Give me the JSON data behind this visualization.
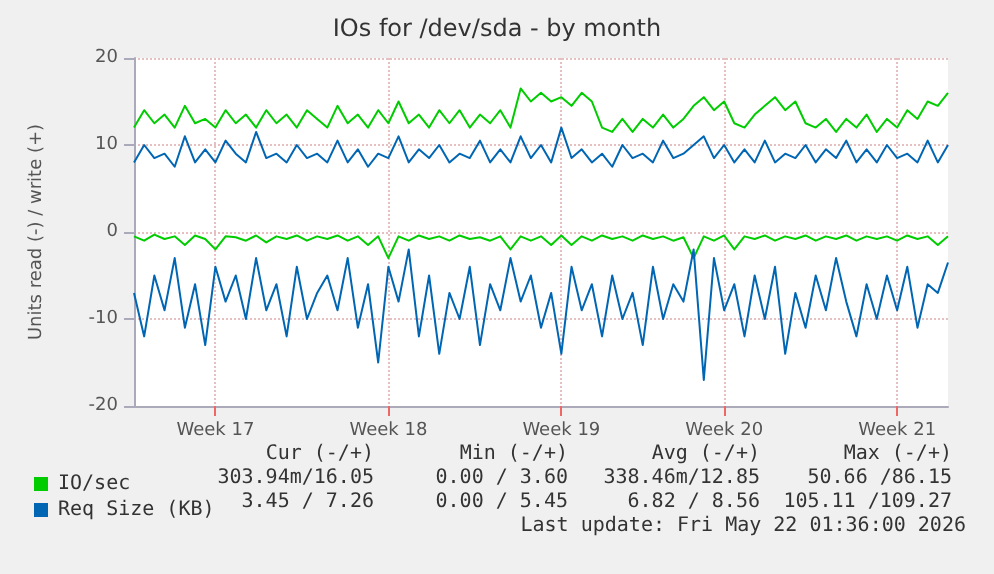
{
  "chart_data": {
    "type": "line",
    "title": "IOs for /dev/sda - by month",
    "ylabel": "Units read (-) / write (+)",
    "categories": [
      null,
      null,
      null,
      null,
      null,
      null,
      null,
      null,
      "Week 17",
      null,
      null,
      null,
      null,
      null,
      null,
      null,
      null,
      null,
      null,
      null,
      null,
      null,
      null,
      null,
      null,
      "Week 18",
      null,
      null,
      null,
      null,
      null,
      null,
      null,
      null,
      null,
      null,
      null,
      null,
      null,
      null,
      null,
      null,
      "Week 19",
      null,
      null,
      null,
      null,
      null,
      null,
      null,
      null,
      null,
      null,
      null,
      null,
      null,
      null,
      null,
      "Week 20",
      null,
      null,
      null,
      null,
      null,
      null,
      null,
      null,
      null,
      null,
      null,
      null,
      null,
      null,
      null,
      null,
      "Week 21",
      null,
      null,
      null,
      null,
      null
    ],
    "series": [
      {
        "color": "#00cc00",
        "values": [
          -0.5,
          -1,
          -0.3,
          -0.8,
          -0.5,
          -1.5,
          -0.4,
          -0.8,
          -2,
          -0.5,
          -0.6,
          -1,
          -0.4,
          -1.2,
          -0.5,
          -0.8,
          -0.4,
          -1,
          -0.5,
          -0.8,
          -0.4,
          -1,
          -0.5,
          -1.5,
          -0.5,
          -3,
          -0.5,
          -1,
          -0.4,
          -0.8,
          -0.5,
          -1,
          -0.4,
          -0.8,
          -0.6,
          -1,
          -0.5,
          -2,
          -0.5,
          -1,
          -0.5,
          -1.5,
          -0.4,
          -1.5,
          -0.5,
          -1,
          -0.4,
          -0.8,
          -0.5,
          -1,
          -0.4,
          -0.8,
          -0.5,
          -1,
          -0.6,
          -3,
          -0.5,
          -1,
          -0.4,
          -2,
          -0.5,
          -0.8,
          -0.4,
          -1,
          -0.5,
          -0.8,
          -0.4,
          -1,
          -0.5,
          -0.8,
          -0.4,
          -1,
          -0.5,
          -0.8,
          -0.5,
          -1,
          -0.4,
          -0.8,
          -0.5,
          -1.5,
          -0.5
        ]
      },
      {
        "color": "#0066b3",
        "values": [
          -7,
          -12,
          -5,
          -9,
          -3,
          -11,
          -6,
          -13,
          -4,
          -8,
          -5,
          -10,
          -3,
          -9,
          -6,
          -12,
          -4,
          -10,
          -7,
          -5,
          -9,
          -3,
          -11,
          -6,
          -15,
          -4,
          -8,
          -2,
          -12,
          -5,
          -14,
          -7,
          -10,
          -4,
          -13,
          -6,
          -9,
          -3,
          -8,
          -5,
          -11,
          -7,
          -14,
          -4,
          -9,
          -6,
          -12,
          -5,
          -10,
          -7,
          -13,
          -4,
          -10,
          -6,
          -8,
          -2,
          -17,
          -3,
          -9,
          -6,
          -12,
          -5,
          -10,
          -4,
          -14,
          -7,
          -11,
          -5,
          -9,
          -3,
          -8,
          -12,
          -6,
          -10,
          -5,
          -9,
          -4,
          -11,
          -6,
          -7,
          -3.5
        ]
      },
      {
        "name": "IO/sec",
        "color": "#00cc00",
        "values": [
          12,
          14,
          12.5,
          13.5,
          12,
          14.5,
          12.5,
          13,
          12,
          14,
          12.5,
          13.5,
          12,
          14,
          12.5,
          13.5,
          12,
          14,
          13,
          12,
          14.5,
          12.5,
          13.5,
          12,
          14,
          12.5,
          15,
          12.5,
          13.5,
          12,
          14,
          12.5,
          14,
          12,
          13.5,
          12.5,
          14,
          12,
          16.5,
          15,
          16,
          15,
          15.5,
          14.5,
          16,
          15,
          12,
          11.5,
          13,
          11.5,
          13,
          12,
          13.5,
          12,
          13,
          14.5,
          15.5,
          14,
          15,
          12.5,
          12,
          13.5,
          14.5,
          15.5,
          14,
          15,
          12.5,
          12,
          13,
          11.5,
          13,
          12,
          13.5,
          11.5,
          13,
          12,
          14,
          13,
          15,
          14.5,
          16
        ]
      },
      {
        "name": "Req Size (KB)",
        "color": "#0066b3",
        "values": [
          8,
          10,
          8.5,
          9,
          7.5,
          11,
          8,
          9.5,
          8,
          10.5,
          9,
          8,
          11.5,
          8.5,
          9,
          8,
          10,
          8.5,
          9,
          8,
          10.5,
          8,
          9.5,
          7.5,
          9,
          8.5,
          11,
          8,
          9.5,
          8.5,
          10,
          8,
          9,
          8.5,
          10.5,
          8,
          9.5,
          8,
          11,
          8.5,
          10,
          8,
          12,
          8.5,
          9.5,
          8,
          9,
          7.5,
          10,
          8.5,
          9,
          8,
          10.5,
          8.5,
          9,
          10,
          11,
          8.5,
          10,
          8,
          9.5,
          8,
          10.5,
          8,
          9,
          8.5,
          10,
          8,
          9.5,
          8.5,
          10.5,
          8,
          9.5,
          8,
          10,
          8.5,
          9,
          8,
          10.5,
          8,
          10
        ]
      }
    ],
    "ylim": [
      -20,
      20
    ],
    "yticks": [
      -20,
      -10,
      0,
      10,
      20
    ],
    "grid": true,
    "legend": "bottom",
    "marker": "none",
    "line_style": "solid",
    "annotations": [
      "Cur (-/+)",
      "Min (-/+)",
      "Avg (-/+)",
      "Max (-/+)",
      "303.94m/16.05",
      "0.00 / 3.60",
      "338.46m/12.85",
      "50.66 /86.15",
      "3.45 / 7.26",
      "0.00 / 5.45",
      "6.82 / 8.56",
      "105.11 /109.27",
      "Last update: Fri May 22 01:36:00 2026"
    ]
  }
}
